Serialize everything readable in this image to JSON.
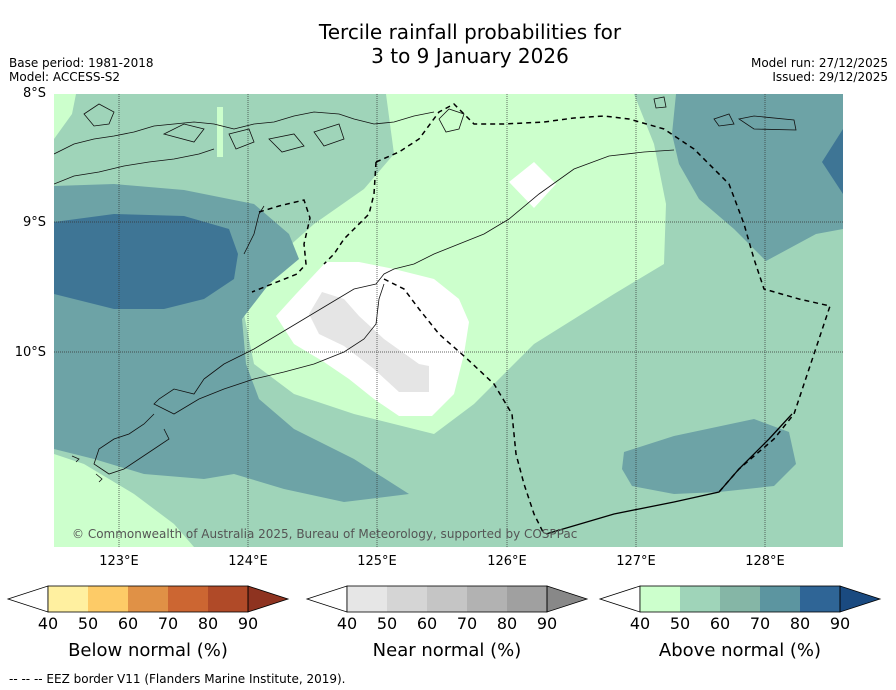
{
  "title_line1": "Tercile rainfall probabilities for",
  "title_line2": "3 to 9 January 2026",
  "base_period": "Base period: 1981-2018",
  "model": "Model: ACCESS-S2",
  "model_run": "Model run: 27/12/2025",
  "issued": "Issued: 29/12/2025",
  "latitudes": [
    "8°S",
    "9°S",
    "10°S"
  ],
  "longitudes": [
    "123°E",
    "124°E",
    "125°E",
    "126°E",
    "127°E",
    "128°E"
  ],
  "copyright": "© Commonwealth of Australia 2025, Bureau of Meteorology, supported by COSPPac",
  "footnote": "--  --  -- EEZ border V11 (Flanders Marine Institute, 2019).",
  "colorbars": [
    {
      "title": "Below normal (%)",
      "ticks": [
        "40",
        "50",
        "60",
        "70",
        "80",
        "90"
      ],
      "colors": [
        "#ffffff",
        "#fff0a0",
        "#fdcb67",
        "#e09146",
        "#cc6632",
        "#b04a28",
        "#8e3320"
      ]
    },
    {
      "title": "Near normal (%)",
      "ticks": [
        "40",
        "50",
        "60",
        "70",
        "80",
        "90"
      ],
      "colors": [
        "#ffffff",
        "#e6e6e6",
        "#d5d5d5",
        "#c5c5c5",
        "#b2b2b2",
        "#a0a0a0",
        "#888888"
      ]
    },
    {
      "title": "Above normal (%)",
      "ticks": [
        "40",
        "50",
        "60",
        "70",
        "80",
        "90"
      ],
      "colors": [
        "#ffffff",
        "#ccffcc",
        "#9fd4b9",
        "#85b6a6",
        "#5c95a0",
        "#2f6596",
        "#1a4a80"
      ]
    }
  ]
}
